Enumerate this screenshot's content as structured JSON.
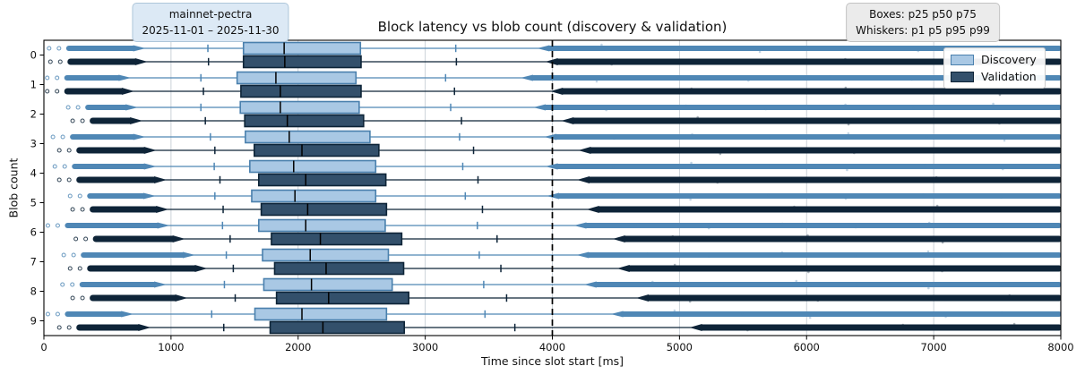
{
  "annotations": {
    "dataset": {
      "line1": "mainnet-pectra",
      "line2": "2025-11-01 – 2025-11-30"
    },
    "percentiles": {
      "line1": "Boxes: p25 p50 p75",
      "line2": "Whiskers: p1 p5 p95 p99"
    }
  },
  "chart_data": {
    "type": "boxplot-horizontal",
    "title": "Block latency vs blob count (discovery & validation)",
    "xlabel": "Time since slot start [ms]",
    "ylabel": "Blob count",
    "xlim": [
      0,
      8000
    ],
    "x_ticks": [
      0,
      1000,
      2000,
      3000,
      4000,
      5000,
      6000,
      7000,
      8000
    ],
    "categories": [
      "0",
      "1",
      "2",
      "3",
      "4",
      "5",
      "6",
      "7",
      "8",
      "9"
    ],
    "grid": "vertical",
    "reference_line_x": 4000,
    "legend_position": "upper right",
    "series": [
      {
        "name": "Discovery",
        "color": {
          "fill": "#a9c8e4",
          "edge": "#4a80ad",
          "line": "#4f87b5"
        },
        "boxes": [
          {
            "blob": 0,
            "min": 20,
            "p1": 780,
            "p5": 1290,
            "p25": 1570,
            "p50": 1890,
            "p75": 2490,
            "p95": 3240,
            "p99": 3900,
            "max": 8000
          },
          {
            "blob": 1,
            "min": 5,
            "p1": 665,
            "p5": 1235,
            "p25": 1520,
            "p50": 1825,
            "p75": 2455,
            "p95": 3160,
            "p99": 3770,
            "max": 8000
          },
          {
            "blob": 2,
            "min": 170,
            "p1": 720,
            "p5": 1235,
            "p25": 1545,
            "p50": 1860,
            "p75": 2480,
            "p95": 3200,
            "p99": 3870,
            "max": 8000
          },
          {
            "blob": 3,
            "min": 50,
            "p1": 780,
            "p5": 1310,
            "p25": 1585,
            "p50": 1930,
            "p75": 2565,
            "p95": 3270,
            "p99": 3955,
            "max": 8000
          },
          {
            "blob": 4,
            "min": 65,
            "p1": 865,
            "p5": 1340,
            "p25": 1620,
            "p50": 1965,
            "p75": 2610,
            "p95": 3295,
            "p99": 3965,
            "max": 8000
          },
          {
            "blob": 5,
            "min": 185,
            "p1": 860,
            "p5": 1345,
            "p25": 1635,
            "p50": 1975,
            "p75": 2610,
            "p95": 3315,
            "p99": 3975,
            "max": 8000
          },
          {
            "blob": 6,
            "min": 10,
            "p1": 970,
            "p5": 1405,
            "p25": 1690,
            "p50": 2060,
            "p75": 2685,
            "p95": 3410,
            "p99": 4190,
            "max": 8000
          },
          {
            "blob": 7,
            "min": 135,
            "p1": 1170,
            "p5": 1435,
            "p25": 1720,
            "p50": 2095,
            "p75": 2710,
            "p95": 3425,
            "p99": 4210,
            "max": 8000
          },
          {
            "blob": 8,
            "min": 125,
            "p1": 945,
            "p5": 1420,
            "p25": 1730,
            "p50": 2105,
            "p75": 2740,
            "p95": 3460,
            "p99": 4270,
            "max": 8000
          },
          {
            "blob": 9,
            "min": 10,
            "p1": 685,
            "p5": 1320,
            "p25": 1660,
            "p50": 2030,
            "p75": 2695,
            "p95": 3470,
            "p99": 4480,
            "max": 8000
          }
        ]
      },
      {
        "name": "Validation",
        "color": {
          "fill": "#33506b",
          "edge": "#0d2437",
          "line": "#0e2438"
        },
        "boxes": [
          {
            "blob": 0,
            "min": 30,
            "p1": 795,
            "p5": 1295,
            "p25": 1570,
            "p50": 1895,
            "p75": 2495,
            "p95": 3245,
            "p99": 3965,
            "max": 8000
          },
          {
            "blob": 1,
            "min": 5,
            "p1": 690,
            "p5": 1255,
            "p25": 1550,
            "p50": 1860,
            "p75": 2495,
            "p95": 3230,
            "p99": 4005,
            "max": 8000
          },
          {
            "blob": 2,
            "min": 205,
            "p1": 755,
            "p5": 1270,
            "p25": 1580,
            "p50": 1915,
            "p75": 2515,
            "p95": 3285,
            "p99": 4090,
            "max": 8000
          },
          {
            "blob": 3,
            "min": 100,
            "p1": 865,
            "p5": 1345,
            "p25": 1655,
            "p50": 2030,
            "p75": 2635,
            "p95": 3380,
            "p99": 4225,
            "max": 8000
          },
          {
            "blob": 4,
            "min": 100,
            "p1": 945,
            "p5": 1385,
            "p25": 1690,
            "p50": 2060,
            "p75": 2690,
            "p95": 3415,
            "p99": 4215,
            "max": 8000
          },
          {
            "blob": 5,
            "min": 205,
            "p1": 960,
            "p5": 1410,
            "p25": 1710,
            "p50": 2075,
            "p75": 2695,
            "p95": 3450,
            "p99": 4290,
            "max": 8000
          },
          {
            "blob": 6,
            "min": 230,
            "p1": 1090,
            "p5": 1465,
            "p25": 1790,
            "p50": 2175,
            "p75": 2815,
            "p95": 3565,
            "p99": 4495,
            "max": 8000
          },
          {
            "blob": 7,
            "min": 185,
            "p1": 1265,
            "p5": 1490,
            "p25": 1815,
            "p50": 2220,
            "p75": 2830,
            "p95": 3595,
            "p99": 4530,
            "max": 8000
          },
          {
            "blob": 8,
            "min": 205,
            "p1": 1110,
            "p5": 1505,
            "p25": 1830,
            "p50": 2240,
            "p75": 2870,
            "p95": 3640,
            "p99": 4680,
            "max": 8000
          },
          {
            "blob": 9,
            "min": 100,
            "p1": 820,
            "p5": 1415,
            "p25": 1780,
            "p50": 2195,
            "p75": 2835,
            "p95": 3705,
            "p99": 5100,
            "max": 8000
          }
        ]
      }
    ],
    "style": {
      "grid_color": "#c6cdd4",
      "frame_color": "#000000",
      "median_color": "#000000",
      "reference_line_color": "#000000"
    }
  }
}
